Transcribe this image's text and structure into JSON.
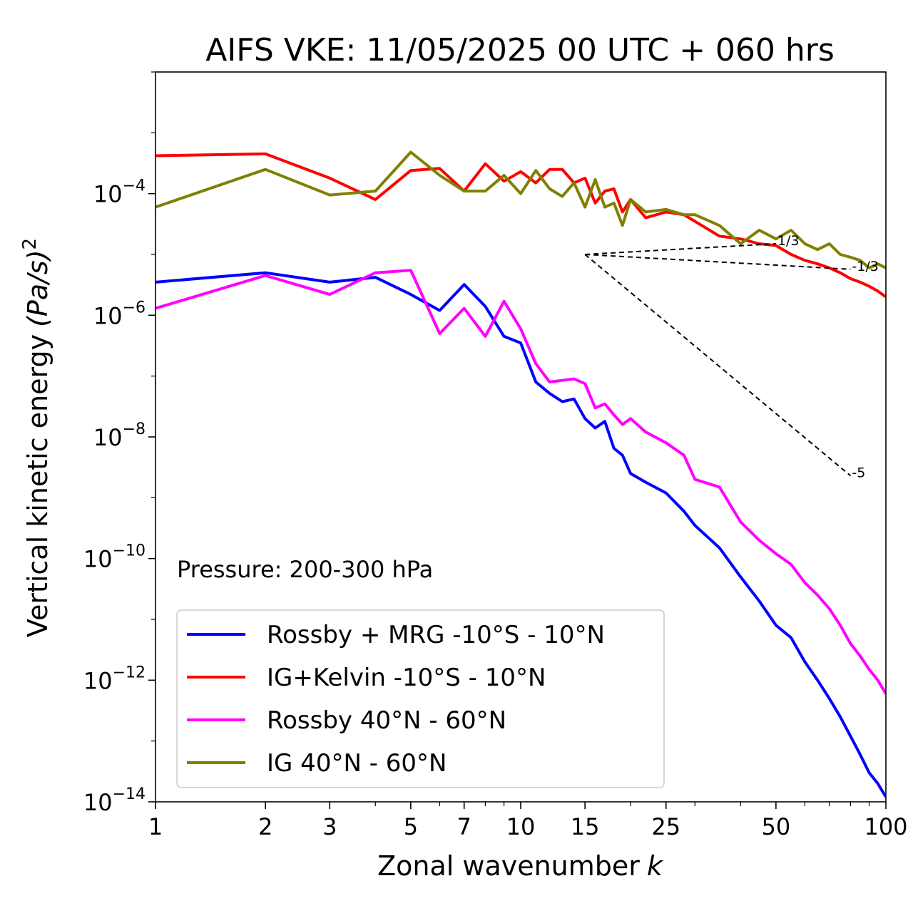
{
  "chart_data": {
    "type": "line",
    "title": "AIFS VKE: 11/05/2025 00 UTC + 060 hrs",
    "xlabel": "Zonal wavenumber",
    "xlabel_var": "k",
    "ylabel": "Vertical kinetic energy",
    "ylabel_unit": "(Pa/s)",
    "ylabel_exp": "2",
    "xscale": "log",
    "yscale": "log",
    "xlim": [
      1,
      100
    ],
    "ylim": [
      1e-14,
      0.01
    ],
    "xticks": [
      1,
      2,
      3,
      5,
      7,
      10,
      15,
      25,
      50,
      100
    ],
    "xtick_labels": [
      "1",
      "2",
      "3",
      "5",
      "7",
      "10",
      "15",
      "25",
      "50",
      "100"
    ],
    "yticks": [
      1e-14,
      1e-12,
      1e-10,
      1e-08,
      1e-06,
      0.0001
    ],
    "ytick_mantissa": [
      "10",
      "10",
      "10",
      "10",
      "10",
      "10"
    ],
    "ytick_exponents": [
      "−14",
      "−12",
      "−10",
      "−8",
      "−6",
      "−4"
    ],
    "annotation": "Pressure: 200-300 hPa",
    "legend_position": "lower-left",
    "series": [
      {
        "name": "Rossby + MRG -10°S - 10°N",
        "color": "#0000ff",
        "x": [
          1,
          2,
          3,
          4,
          5,
          6,
          7,
          8,
          9,
          10,
          11,
          12,
          13,
          14,
          15,
          16,
          17,
          18,
          19,
          20,
          22,
          25,
          28,
          30,
          35,
          40,
          45,
          50,
          55,
          60,
          65,
          70,
          75,
          80,
          85,
          90,
          95,
          100
        ],
        "values": [
          3.5e-06,
          5e-06,
          3.5e-06,
          4.2e-06,
          2.2e-06,
          1.2e-06,
          3.2e-06,
          1.4e-06,
          4.5e-07,
          3.5e-07,
          8e-08,
          5.2e-08,
          3.8e-08,
          4.2e-08,
          2e-08,
          1.4e-08,
          1.8e-08,
          6.5e-09,
          5e-09,
          2.5e-09,
          1.8e-09,
          1.2e-09,
          6e-10,
          3.5e-10,
          1.5e-10,
          5e-11,
          2e-11,
          8e-12,
          5e-12,
          2e-12,
          1e-12,
          5e-13,
          2.5e-13,
          1.2e-13,
          6e-14,
          3e-14,
          2e-14,
          1.2e-14
        ]
      },
      {
        "name": "IG+Kelvin -10°S - 10°N",
        "color": "#ff0000",
        "x": [
          1,
          2,
          3,
          4,
          5,
          6,
          7,
          8,
          9,
          10,
          11,
          12,
          13,
          14,
          15,
          16,
          17,
          18,
          19,
          20,
          22,
          25,
          28,
          30,
          35,
          40,
          45,
          50,
          55,
          60,
          65,
          70,
          75,
          80,
          85,
          90,
          95,
          100
        ],
        "values": [
          0.00042,
          0.00045,
          0.00018,
          8e-05,
          0.00024,
          0.00026,
          0.00011,
          0.00031,
          0.00016,
          0.00023,
          0.00015,
          0.00025,
          0.00025,
          0.00015,
          0.00018,
          7e-05,
          0.00011,
          0.00012,
          5e-05,
          8e-05,
          4e-05,
          5e-05,
          4.5e-05,
          3.5e-05,
          2e-05,
          1.8e-05,
          1.5e-05,
          1.4e-05,
          1e-05,
          8e-06,
          7e-06,
          6e-06,
          5e-06,
          4e-06,
          3.5e-06,
          3e-06,
          2.5e-06,
          2e-06
        ]
      },
      {
        "name": "Rossby 40°N - 60°N",
        "color": "#ff00ff",
        "x": [
          1,
          2,
          3,
          4,
          5,
          6,
          7,
          8,
          9,
          10,
          11,
          12,
          13,
          14,
          15,
          16,
          17,
          18,
          19,
          20,
          22,
          25,
          28,
          30,
          35,
          40,
          45,
          50,
          55,
          60,
          65,
          70,
          75,
          80,
          85,
          90,
          95,
          100
        ],
        "values": [
          1.3e-06,
          4.5e-06,
          2.2e-06,
          5e-06,
          5.5e-06,
          5e-07,
          1.3e-06,
          4.5e-07,
          1.7e-06,
          6e-07,
          1.6e-07,
          8e-08,
          8.5e-08,
          9e-08,
          7.5e-08,
          3e-08,
          3.5e-08,
          2.3e-08,
          1.6e-08,
          2e-08,
          1.2e-08,
          8e-09,
          5e-09,
          2e-09,
          1.5e-09,
          4e-10,
          2e-10,
          1.2e-10,
          8e-11,
          4e-11,
          2.5e-11,
          1.5e-11,
          8e-12,
          4e-12,
          2.5e-12,
          1.5e-12,
          1e-12,
          6e-13
        ]
      },
      {
        "name": "IG 40°N - 60°N",
        "color": "#808000",
        "x": [
          1,
          2,
          3,
          4,
          5,
          6,
          7,
          8,
          9,
          10,
          11,
          12,
          13,
          14,
          15,
          16,
          17,
          18,
          19,
          20,
          22,
          25,
          28,
          30,
          35,
          40,
          45,
          50,
          55,
          60,
          65,
          70,
          75,
          80,
          85,
          90,
          95,
          100
        ],
        "values": [
          6e-05,
          0.00025,
          9.5e-05,
          0.00011,
          0.00048,
          0.0002,
          0.00011,
          0.00011,
          0.0002,
          0.0001,
          0.00024,
          0.00012,
          9e-05,
          0.00015,
          6e-05,
          0.00017,
          6e-05,
          7e-05,
          3e-05,
          8e-05,
          5e-05,
          5.5e-05,
          4.5e-05,
          4.5e-05,
          3e-05,
          1.5e-05,
          2.5e-05,
          1.8e-05,
          2.5e-05,
          1.5e-05,
          1.2e-05,
          1.5e-05,
          1e-05,
          9e-06,
          8e-06,
          6e-06,
          7e-06,
          6e-06
        ]
      }
    ],
    "reference_lines": [
      {
        "label": "1/3",
        "x0": 15,
        "y0": 1e-05,
        "x1": 50,
        "y1": 1.5e-05
      },
      {
        "label": "-1/3",
        "x0": 15,
        "y0": 1e-05,
        "x1": 80,
        "y1": 5.7e-06
      },
      {
        "label": "-5",
        "x0": 15,
        "y0": 1e-05,
        "x1": 80,
        "y1": 2.3e-09
      }
    ]
  }
}
